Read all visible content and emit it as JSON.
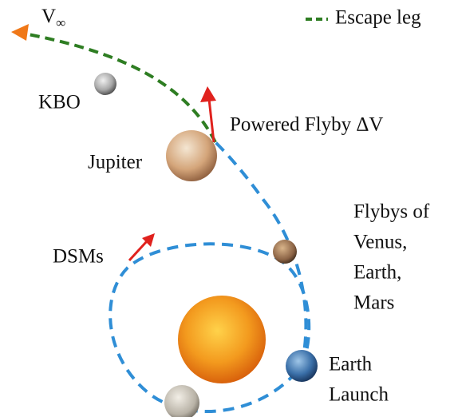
{
  "legend": {
    "label": "Escape leg"
  },
  "labels": {
    "v_inf": {
      "main": "V",
      "subscript": "∞"
    },
    "kbo": "KBO",
    "powered_flyby": "Powered Flyby ΔV",
    "jupiter": "Jupiter",
    "flybys": [
      "Flybys of",
      "Venus,",
      "Earth,",
      "Mars"
    ],
    "dsms": "DSMs",
    "earth_launch": [
      "Earth",
      "Launch"
    ]
  }
}
